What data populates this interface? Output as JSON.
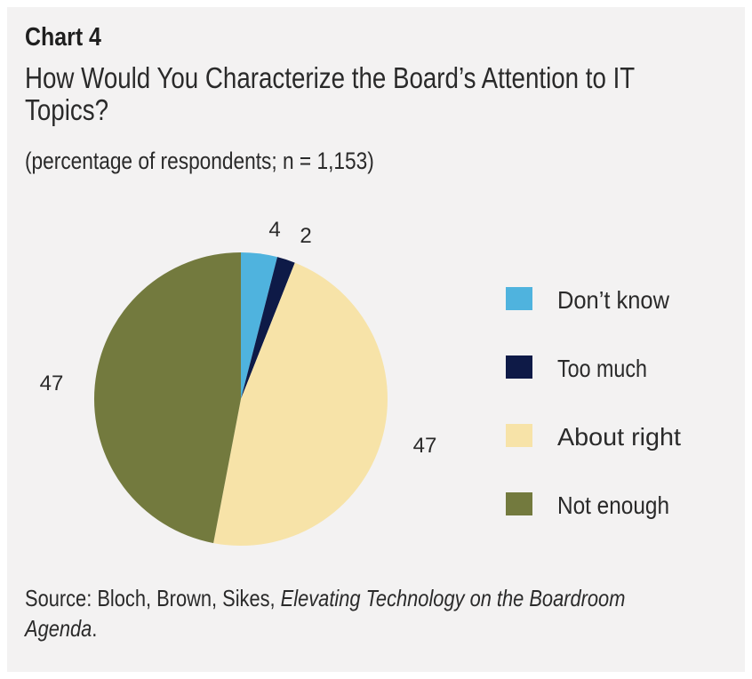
{
  "chart_number": "Chart 4",
  "subtitle": "(percentage of respondents; n = 1,153)",
  "source": {
    "prefix": "Source: Bloch, Brown, Sikes, ",
    "italic": "Elevating Technology on the Boardroom Agenda",
    "suffix": "."
  },
  "chart_data": {
    "type": "pie",
    "title": "How Would You Characterize the Board’s Attention to IT Topics?",
    "legend_position": "right",
    "slices": [
      {
        "label": "Don’t know",
        "value": 4,
        "value_label": "4",
        "color": "#4fb3de"
      },
      {
        "label": "Too much",
        "value": 2,
        "value_label": "2",
        "color": "#0e1a47"
      },
      {
        "label": "About right",
        "value": 47,
        "value_label": "47",
        "color": "#f7e3a8"
      },
      {
        "label": "Not enough",
        "value": 47,
        "value_label": "47",
        "color": "#737a3e"
      }
    ]
  }
}
